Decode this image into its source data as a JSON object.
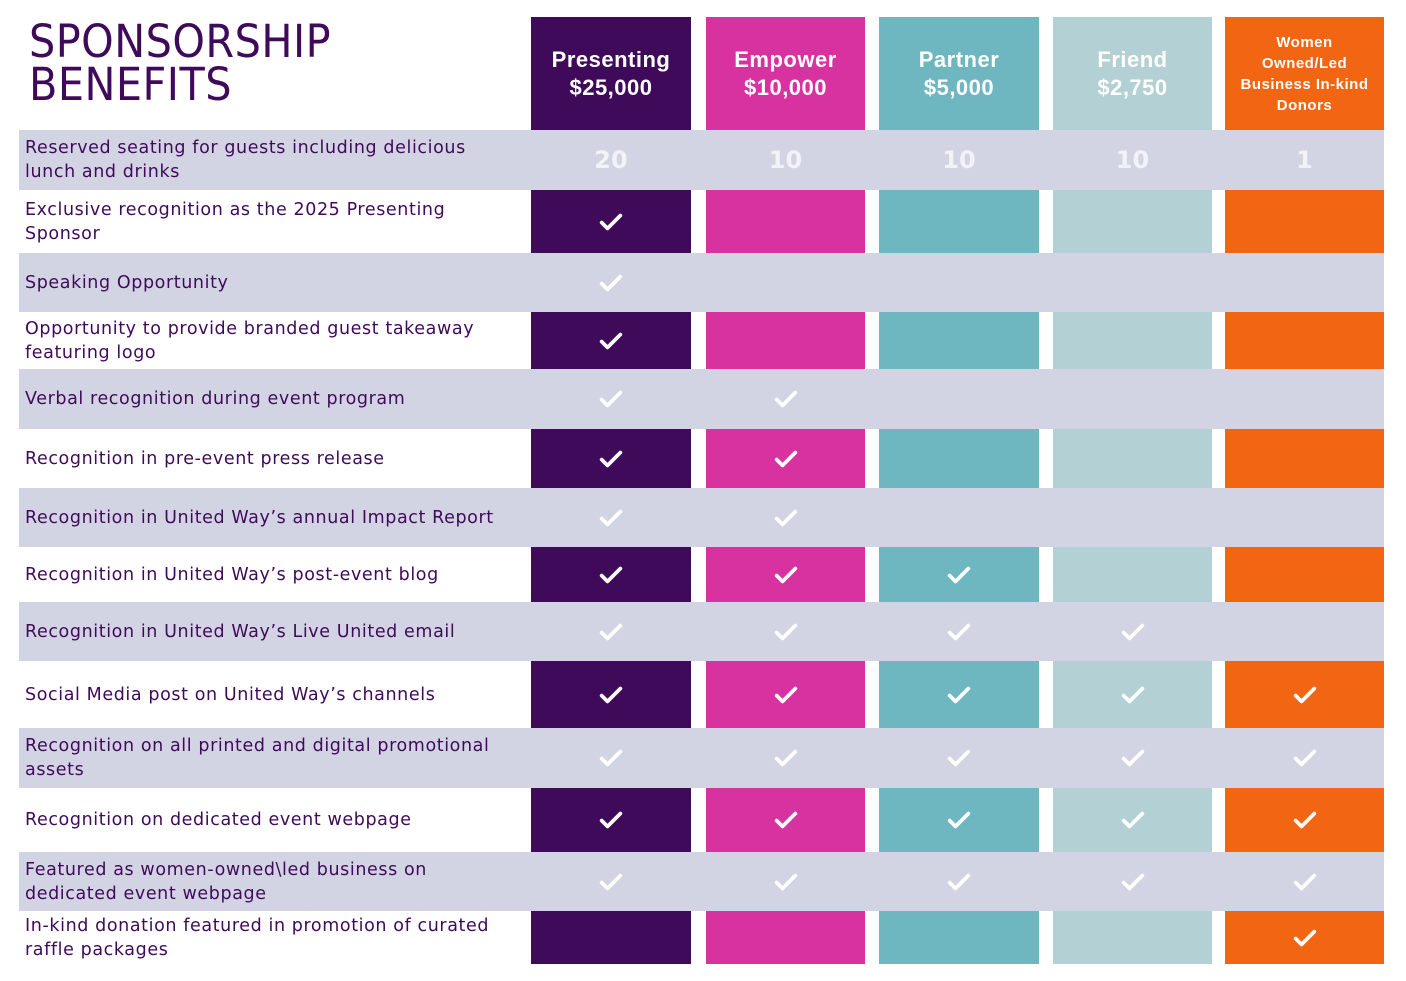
{
  "title": [
    "SPONSORSHIP",
    "BENEFITS"
  ],
  "tiers": [
    {
      "name": "Presenting",
      "price": "$25,000",
      "color": "#3f0a5a"
    },
    {
      "name": "Empower",
      "price": "$10,000",
      "color": "#d832a0"
    },
    {
      "name": "Partner",
      "price": "$5,000",
      "color": "#6eb7c0"
    },
    {
      "name": "Friend",
      "price": "$2,750",
      "color": "#b3d1d5"
    },
    {
      "name": "Women\nOwned/Led\nBusiness In-kind\nDonors",
      "price": "",
      "color": "#f26513"
    }
  ],
  "colors": {
    "row_band": "#d3d4e3",
    "text": "#3f0a5a",
    "check": "#ffffff"
  },
  "rows": [
    {
      "label": "Reserved seating for guests including delicious lunch and drinks",
      "values": [
        "20",
        "10",
        "10",
        "10",
        "1"
      ]
    },
    {
      "label": "Exclusive recognition as the 2025 Presenting Sponsor",
      "values": [
        "check",
        "",
        "",
        "",
        ""
      ]
    },
    {
      "label": "Speaking Opportunity",
      "values": [
        "check",
        "",
        "",
        "",
        ""
      ]
    },
    {
      "label": "Opportunity to provide branded guest takeaway featuring logo",
      "values": [
        "check",
        "",
        "",
        "",
        ""
      ]
    },
    {
      "label": "Verbal recognition during event program",
      "values": [
        "check",
        "check",
        "",
        "",
        ""
      ]
    },
    {
      "label": " Recognition in pre-event press release",
      "values": [
        "check",
        "check",
        "",
        "",
        ""
      ]
    },
    {
      "label": "Recognition in United Way’s annual Impact Report",
      "values": [
        "check",
        "check",
        "",
        "",
        ""
      ]
    },
    {
      "label": "Recognition in United Way’s post-event blog",
      "values": [
        "check",
        "check",
        "check",
        "",
        ""
      ]
    },
    {
      "label": "Recognition in United Way’s Live United email",
      "values": [
        "check",
        "check",
        "check",
        "check",
        ""
      ]
    },
    {
      "label": "Social Media post on United Way’s channels",
      "values": [
        "check",
        "check",
        "check",
        "check",
        "check"
      ]
    },
    {
      "label": "Recognition on all printed and digital promotional assets",
      "values": [
        "check",
        "check",
        "check",
        "check",
        "check"
      ]
    },
    {
      "label": "Recognition on dedicated event webpage",
      "values": [
        "check",
        "check",
        "check",
        "check",
        "check"
      ]
    },
    {
      "label": "Featured as women-owned\\led business on dedicated event webpage",
      "values": [
        "check",
        "check",
        "check",
        "check",
        "check"
      ]
    },
    {
      "label": "In-kind donation featured in promotion of curated raffle packages",
      "values": [
        "",
        "",
        "",
        "",
        "check"
      ]
    }
  ]
}
